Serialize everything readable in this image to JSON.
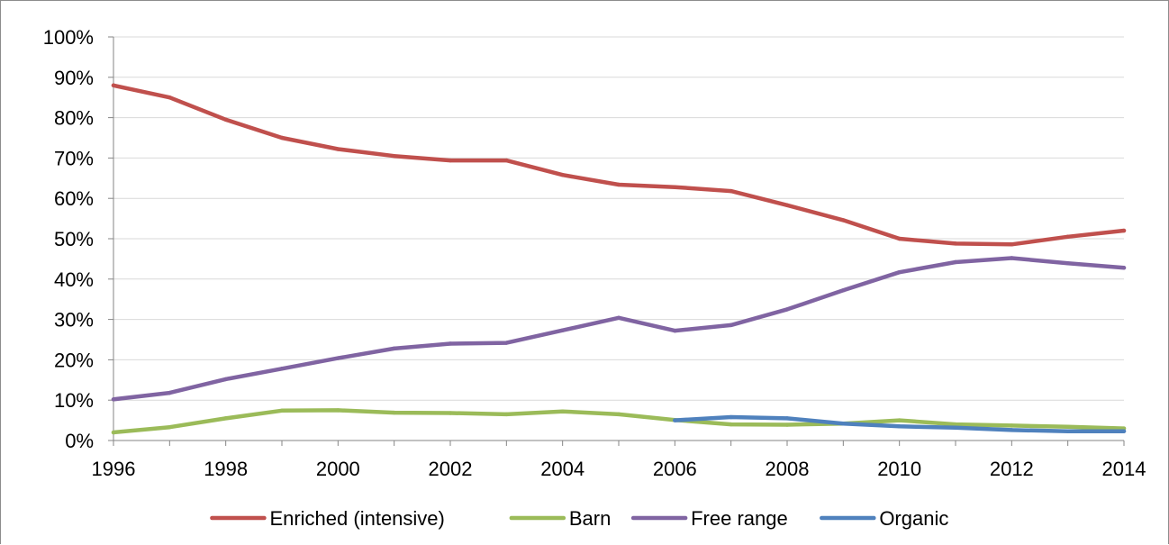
{
  "chart_data": {
    "type": "line",
    "x": [
      1996,
      1997,
      1998,
      1999,
      2000,
      2001,
      2002,
      2003,
      2004,
      2005,
      2006,
      2007,
      2008,
      2009,
      2010,
      2011,
      2012,
      2013,
      2014
    ],
    "x_tick_labels": [
      "1996",
      "1998",
      "2000",
      "2002",
      "2004",
      "2006",
      "2008",
      "2010",
      "2012",
      "2014"
    ],
    "y_tick_labels": [
      "0%",
      "10%",
      "20%",
      "30%",
      "40%",
      "50%",
      "60%",
      "70%",
      "80%",
      "90%",
      "100%"
    ],
    "ylim": [
      0,
      100
    ],
    "xlim": [
      1996,
      2014
    ],
    "y_unit": "%",
    "grid": "horizontal",
    "legend_position": "bottom",
    "title": "",
    "xlabel": "",
    "ylabel": "",
    "series": [
      {
        "name": "Enriched (intensive)",
        "color": "#c0504d",
        "x": [
          1996,
          1997,
          1998,
          1999,
          2000,
          2001,
          2002,
          2003,
          2004,
          2005,
          2006,
          2007,
          2008,
          2009,
          2010,
          2011,
          2012,
          2013,
          2014
        ],
        "values": [
          88,
          85,
          79.5,
          75,
          72.2,
          70.5,
          69.4,
          69.4,
          65.8,
          63.4,
          62.8,
          61.8,
          58.3,
          54.6,
          50,
          48.8,
          48.6,
          50.5,
          52
        ]
      },
      {
        "name": "Barn",
        "color": "#9bbb59",
        "x": [
          1996,
          1997,
          1998,
          1999,
          2000,
          2001,
          2002,
          2003,
          2004,
          2005,
          2006,
          2007,
          2008,
          2009,
          2010,
          2011,
          2012,
          2013,
          2014
        ],
        "values": [
          2,
          3.3,
          5.5,
          7.4,
          7.5,
          6.9,
          6.8,
          6.5,
          7.2,
          6.5,
          5.1,
          4,
          3.9,
          4.2,
          5,
          4,
          3.7,
          3.4,
          3
        ]
      },
      {
        "name": "Free range",
        "color": "#8064a2",
        "x": [
          1996,
          1997,
          1998,
          1999,
          2000,
          2001,
          2002,
          2003,
          2004,
          2005,
          2006,
          2007,
          2008,
          2009,
          2010,
          2011,
          2012,
          2013,
          2014
        ],
        "values": [
          10.2,
          11.8,
          15.2,
          17.8,
          20.4,
          22.8,
          24,
          24.2,
          27.3,
          30.4,
          27.2,
          28.6,
          32.5,
          37.2,
          41.7,
          44.2,
          45.2,
          43.9,
          42.8
        ]
      },
      {
        "name": "Organic",
        "color": "#4f81bd",
        "x": [
          2006,
          2007,
          2008,
          2009,
          2010,
          2011,
          2012,
          2013,
          2014
        ],
        "values": [
          5,
          5.8,
          5.5,
          4.2,
          3.5,
          3.2,
          2.6,
          2.3,
          2.3
        ]
      }
    ]
  }
}
